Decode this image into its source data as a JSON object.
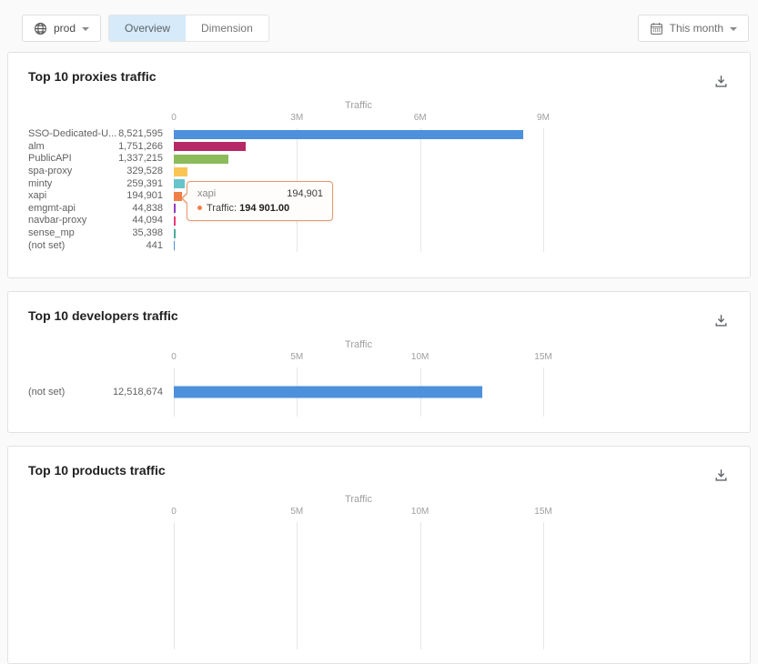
{
  "toolbar": {
    "environment": {
      "label": "prod",
      "icon": "globe-icon"
    },
    "tabs": [
      {
        "label": "Overview",
        "active": true
      },
      {
        "label": "Dimension",
        "active": false
      }
    ],
    "date_range": {
      "label": "This month",
      "icon": "calendar-icon"
    }
  },
  "icons": {
    "card_action": "download-icon",
    "environment": "globe-icon",
    "date_range": "calendar-icon"
  },
  "colors": {
    "page_bg": "#FAFAFA",
    "card_bg": "#FFFFFF",
    "active_tab_bg": "#D6EAF9",
    "grid_line": "#E6E6E6",
    "tooltip_border": "#E9986B",
    "tooltip_marker": "#EF8048"
  },
  "chart_data": [
    {
      "type": "bar",
      "orientation": "horizontal",
      "title": "Top 10 proxies traffic",
      "xlabel": "Traffic",
      "xlim": [
        0,
        9000000
      ],
      "grid": true,
      "legend": false,
      "ticks": [
        {
          "label": "0",
          "value": 0
        },
        {
          "label": "3M",
          "value": 3000000
        },
        {
          "label": "6M",
          "value": 6000000
        },
        {
          "label": "9M",
          "value": 9000000
        }
      ],
      "categories": [
        "SSO-Dedicated-U...",
        "alm",
        "PublicAPI",
        "spa-proxy",
        "minty",
        "xapi",
        "emgmt-api",
        "navbar-proxy",
        "sense_mp",
        "(not set)"
      ],
      "values": [
        8521595,
        1751266,
        1337215,
        329528,
        259391,
        194901,
        44838,
        44094,
        35398,
        441
      ],
      "value_labels": [
        "8,521,595",
        "1,751,266",
        "1,337,215",
        "329,528",
        "259,391",
        "194,901",
        "44,838",
        "44,094",
        "35,398",
        "441"
      ],
      "bar_colors": [
        "#4D90DC",
        "#B52A66",
        "#8CBB5C",
        "#F9C653",
        "#66C4CA",
        "#EF8048",
        "#9138C6",
        "#EC3C77",
        "#4FA99B",
        "#4D90DC"
      ],
      "tooltip": {
        "category": "xapi",
        "value_label": "194,901",
        "series_label": "Traffic:",
        "value_text": "194 901.00",
        "marker_color": "#EF8048"
      }
    },
    {
      "type": "bar",
      "orientation": "horizontal",
      "title": "Top 10 developers traffic",
      "xlabel": "Traffic",
      "xlim": [
        0,
        15000000
      ],
      "grid": true,
      "legend": false,
      "ticks": [
        {
          "label": "0",
          "value": 0
        },
        {
          "label": "5M",
          "value": 5000000
        },
        {
          "label": "10M",
          "value": 10000000
        },
        {
          "label": "15M",
          "value": 15000000
        }
      ],
      "categories": [
        "(not set)"
      ],
      "values": [
        12518674
      ],
      "value_labels": [
        "12,518,674"
      ],
      "bar_colors": [
        "#4D90DC"
      ]
    },
    {
      "type": "bar",
      "orientation": "horizontal",
      "title": "Top 10 products traffic",
      "xlabel": "Traffic",
      "xlim": [
        0,
        15000000
      ],
      "grid": true,
      "legend": false,
      "ticks": [
        {
          "label": "0",
          "value": 0
        },
        {
          "label": "5M",
          "value": 5000000
        },
        {
          "label": "10M",
          "value": 10000000
        },
        {
          "label": "15M",
          "value": 15000000
        }
      ],
      "categories": [],
      "values": [],
      "value_labels": [],
      "bar_colors": []
    }
  ]
}
